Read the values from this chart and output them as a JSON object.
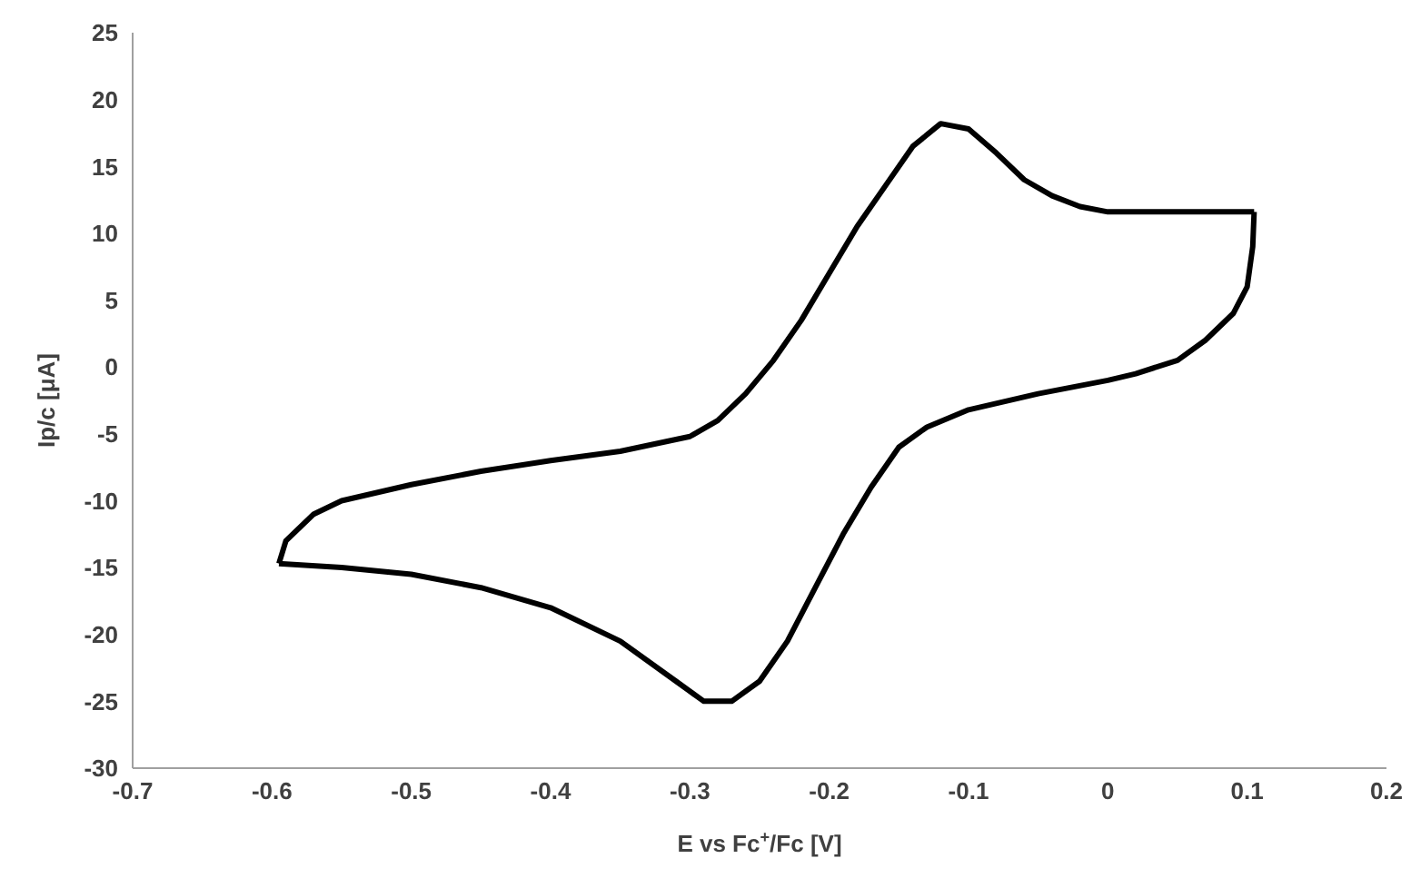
{
  "chart_data": {
    "type": "line",
    "xlabel": "E vs Fc$^{+}$/Fc [V]",
    "ylabel": "Ip/c [μA]",
    "xlim": [
      -0.7,
      0.2
    ],
    "xticks": [
      -0.7,
      -0.6,
      -0.5,
      -0.4,
      -0.3,
      -0.2,
      -0.1,
      0,
      0.1,
      0.2
    ],
    "ylim": [
      -30,
      25
    ],
    "yticks": [
      -30,
      -25,
      -20,
      -15,
      -10,
      -5,
      0,
      5,
      10,
      15,
      20,
      25
    ],
    "grid": false,
    "legend": false,
    "marker": "none",
    "line_style": "solid",
    "series": [
      {
        "color": "#000000",
        "x": [
          -0.595,
          -0.59,
          -0.57,
          -0.55,
          -0.5,
          -0.45,
          -0.4,
          -0.35,
          -0.3,
          -0.28,
          -0.26,
          -0.24,
          -0.22,
          -0.2,
          -0.18,
          -0.16,
          -0.14,
          -0.12,
          -0.1,
          -0.08,
          -0.06,
          -0.04,
          -0.02,
          0,
          0.05,
          0.1,
          0.105
        ],
        "values": [
          -14.7,
          -13,
          -11,
          -10,
          -8.8,
          -7.8,
          -7,
          -6.3,
          -5.2,
          -4,
          -2,
          0.5,
          3.5,
          7,
          10.5,
          13.5,
          16.5,
          18.2,
          17.8,
          16,
          14,
          12.8,
          12,
          11.6,
          11.6,
          11.6,
          11.6
        ]
      },
      {
        "color": "#000000",
        "x": [
          0.105,
          0.104,
          0.1,
          0.09,
          0.07,
          0.05,
          0.02,
          0,
          -0.05,
          -0.1,
          -0.13,
          -0.15,
          -0.17,
          -0.19,
          -0.21,
          -0.23,
          -0.25,
          -0.27,
          -0.29,
          -0.31,
          -0.35,
          -0.4,
          -0.45,
          -0.5,
          -0.55,
          -0.595
        ],
        "values": [
          11.6,
          9,
          6,
          4,
          2,
          0.5,
          -0.5,
          -1,
          -2,
          -3.2,
          -4.5,
          -6,
          -9,
          -12.5,
          -16.5,
          -20.5,
          -23.5,
          -25,
          -25,
          -23.5,
          -20.5,
          -18,
          -16.5,
          -15.5,
          -15,
          -14.7
        ]
      }
    ]
  }
}
